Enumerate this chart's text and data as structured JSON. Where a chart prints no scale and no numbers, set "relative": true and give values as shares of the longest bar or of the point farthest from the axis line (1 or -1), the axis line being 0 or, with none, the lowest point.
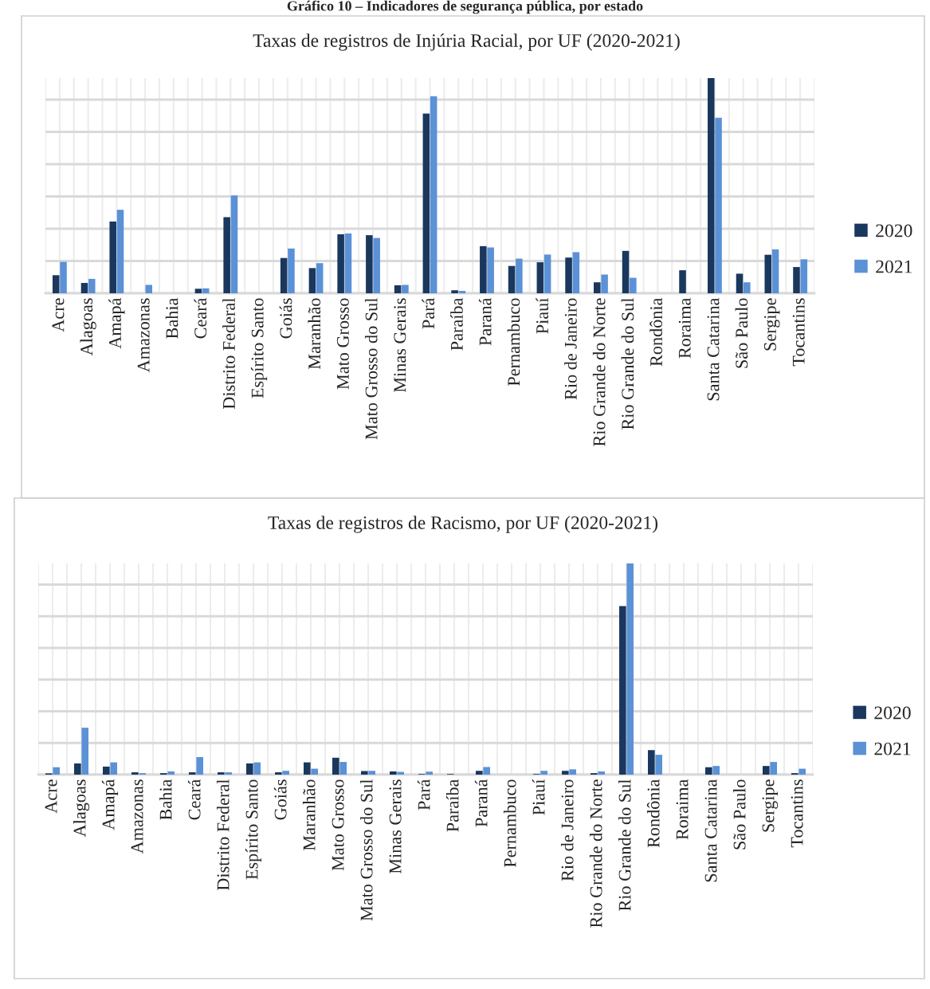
{
  "chart_data": [
    {
      "type": "bar",
      "title": "Taxas de registros de Injúria Racial, por UF (2020-2021)",
      "annotations": [
        "Gráfico 10 – Indicadores de segurança pública, por estado"
      ],
      "relative": true,
      "grid": true,
      "legend": "right",
      "categories": [
        "Acre",
        "Alagoas",
        "Amapá",
        "Amazonas",
        "Bahia",
        "Ceará",
        "Distrito Federal",
        "Espírito Santo",
        "Goiás",
        "Maranhão",
        "Mato Grosso",
        "Mato Grosso do Sul",
        "Minas Gerais",
        "Pará",
        "Paraíba",
        "Paraná",
        "Pernambuco",
        "Piauí",
        "Rio de Janeiro",
        "Rio Grande do Norte",
        "Rio Grande do Sul",
        "Rondônia",
        "Roraima",
        "Santa Catarina",
        "São Paulo",
        "Sergipe",
        "Tocantins"
      ],
      "series": [
        {
          "name": "2020",
          "color": "#1a375e",
          "values": [
            0.084,
            0.048,
            0.333,
            0,
            0,
            0.021,
            0.354,
            0,
            0.164,
            0.117,
            0.274,
            0.27,
            0.037,
            0.835,
            0.014,
            0.219,
            0.127,
            0.144,
            0.166,
            0.051,
            0.197,
            0,
            0.107,
            1.0,
            0.091,
            0.179,
            0.122
          ]
        },
        {
          "name": "2021",
          "color": "#5b91d6",
          "values": [
            0.146,
            0.067,
            0.388,
            0.039,
            0,
            0.023,
            0.455,
            0,
            0.208,
            0.14,
            0.278,
            0.257,
            0.039,
            0.916,
            0.011,
            0.213,
            0.161,
            0.18,
            0.191,
            0.087,
            0.072,
            0,
            0,
            0.816,
            0.051,
            0.204,
            0.158
          ]
        }
      ]
    },
    {
      "type": "bar",
      "title": "Taxas de registros de Racismo, por UF (2020-2021)",
      "relative": true,
      "grid": true,
      "legend": "right",
      "categories": [
        "Acre",
        "Alagoas",
        "Amapá",
        "Amazonas",
        "Bahia",
        "Ceará",
        "Distrito Federal",
        "Espírito Santo",
        "Goiás",
        "Maranhão",
        "Mato Grosso",
        "Mato Grosso do Sul",
        "Minas Gerais",
        "Pará",
        "Paraíba",
        "Paraná",
        "Pernambuco",
        "Piauí",
        "Rio de Janeiro",
        "Rio Grande do Norte",
        "Rio Grande do Sul",
        "Rondônia",
        "Roraima",
        "Santa Catarina",
        "São Paulo",
        "Sergipe",
        "Tocantins"
      ],
      "series": [
        {
          "name": "2020",
          "color": "#1a375e",
          "values": [
            0.006,
            0.053,
            0.038,
            0.011,
            0.007,
            0.011,
            0.011,
            0.053,
            0.011,
            0.058,
            0.08,
            0.017,
            0.015,
            0.003,
            0.003,
            0.018,
            0,
            0.003,
            0.018,
            0.007,
            0.798,
            0.116,
            0,
            0.035,
            0,
            0.041,
            0.007
          ]
        },
        {
          "name": "2021",
          "color": "#5b91d6",
          "values": [
            0.035,
            0.222,
            0.058,
            0.007,
            0.015,
            0.083,
            0.011,
            0.058,
            0.018,
            0.028,
            0.06,
            0.018,
            0.013,
            0.014,
            0,
            0.036,
            0,
            0.018,
            0.025,
            0.015,
            1.0,
            0.094,
            0,
            0.041,
            0,
            0.06,
            0.028
          ]
        }
      ]
    }
  ]
}
